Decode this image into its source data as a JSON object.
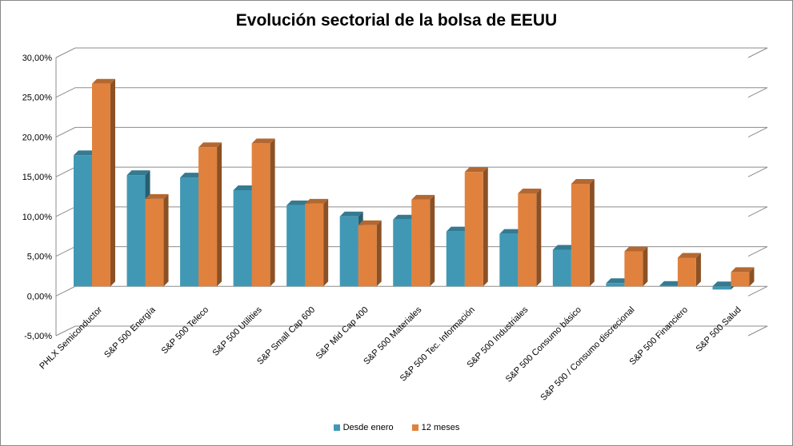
{
  "chart_data": {
    "type": "bar",
    "title": "Evolución sectorial de la bolsa de EEUU",
    "categories": [
      "PHLX Semiconductor",
      "S&P 500 Energía",
      "S&P 500 Teleco",
      "S&P 500  Utilities",
      "S&P Small Cap 600",
      "S&P Mid Cap 400",
      "S&P 500  Materiales",
      "S&P 500 Tec. Información",
      "S&P 500  Industriales",
      "S&P 500  Consumo básico",
      "S&P 500 / Consumo discrecional",
      "S&P 500 Financiero",
      "S&P 500 Salud"
    ],
    "series": [
      {
        "name": "Desde enero",
        "color": "#4198b5",
        "values": [
          16.5,
          14.0,
          13.7,
          12.1,
          10.2,
          8.8,
          8.4,
          6.9,
          6.6,
          4.6,
          0.4,
          0.05,
          -0.4
        ]
      },
      {
        "name": "12 meses",
        "color": "#e0823d",
        "values": [
          25.5,
          11.0,
          17.5,
          18.0,
          10.4,
          7.7,
          10.9,
          14.4,
          11.7,
          12.9,
          4.4,
          3.6,
          1.8
        ]
      }
    ],
    "yticks": [
      "30,00%",
      "25,00%",
      "20,00%",
      "15,00%",
      "10,00%",
      "5,00%",
      "0,00%",
      "-5,00%"
    ],
    "ylim": [
      -5,
      30
    ],
    "grid": true,
    "legend": "bottom"
  }
}
